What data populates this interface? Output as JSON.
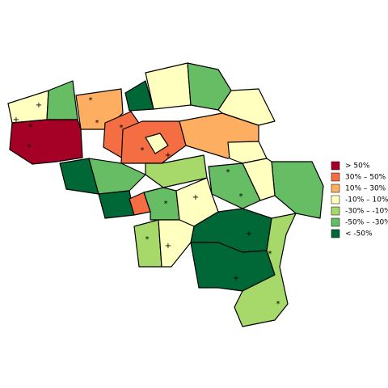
{
  "legend": {
    "items": [
      {
        "label": "> 50%",
        "color": "#a50026"
      },
      {
        "label": "30%  –  50%",
        "color": "#f46d43"
      },
      {
        "label": "10%  –  30%",
        "color": "#fdae61"
      },
      {
        "label": "-10%  –  10%",
        "color": "#ffffbf"
      },
      {
        "label": "-30%  –  -10%",
        "color": "#a6d96a"
      },
      {
        "label": "-50%  –  -30%",
        "color": "#66bd63"
      },
      {
        "label": "< -50%",
        "color": "#006837"
      }
    ]
  },
  "markers": [
    "+",
    "+",
    "*",
    "*",
    "*",
    "*",
    "*",
    "+",
    "*",
    "*",
    "*",
    "*",
    "+",
    "+",
    "+",
    "+",
    "*",
    "*",
    "*"
  ]
}
